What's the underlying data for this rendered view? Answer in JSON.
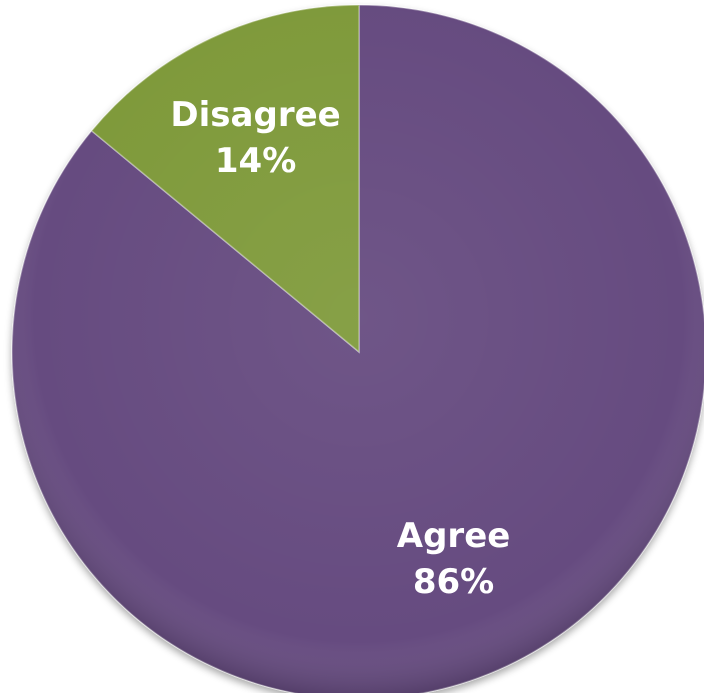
{
  "chart_data": {
    "type": "pie",
    "title": "",
    "slices": [
      {
        "label": "Agree",
        "value": 86,
        "value_label": "86%",
        "color": "#664b80"
      },
      {
        "label": "Disagree",
        "value": 14,
        "value_label": "14%",
        "color": "#7f9a3b"
      }
    ],
    "start": "top",
    "direction": "clockwise",
    "legend": "none"
  }
}
